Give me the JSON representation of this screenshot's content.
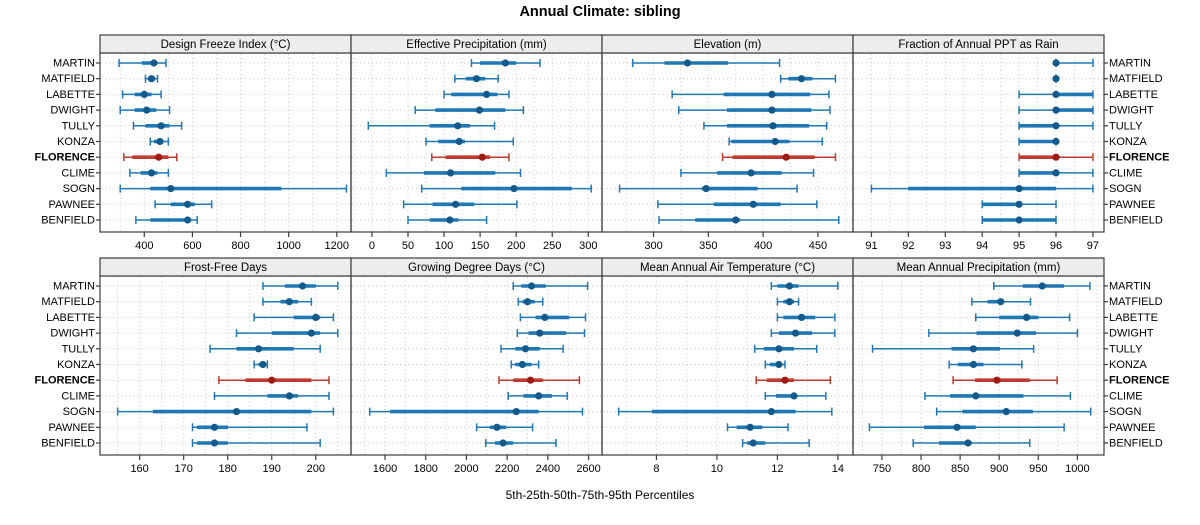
{
  "title": "Annual Climate: sibling",
  "caption": "5th-25th-50th-75th-95th Percentiles",
  "colors": {
    "series_line": "#1F77B4",
    "series_dot": "#125A8C",
    "highlight_line": "#BF3A2F",
    "highlight_dot": "#9E1A13",
    "panel_header_bg": "#EDEDED",
    "panel_border": "#3C3C3C",
    "grid": "#C8C8C8",
    "text": "#000000"
  },
  "chart_data": {
    "type": "dot-interval-trellis",
    "percentiles": [
      5,
      25,
      50,
      75,
      95
    ],
    "layout": {
      "rows": 2,
      "cols": 4,
      "grid": "dotted",
      "y_labels": "both-sides"
    },
    "sites": [
      "MARTIN",
      "MATFIELD",
      "LABETTE",
      "DWIGHT",
      "TULLY",
      "KONZA",
      "FLORENCE",
      "CLIME",
      "SOGN",
      "PAWNEE",
      "BENFIELD"
    ],
    "highlight_site": "FLORENCE",
    "panels": [
      {
        "title": "Design Freeze Index (°C)",
        "row": 0,
        "col": 0,
        "xlim": [
          216,
          1259
        ],
        "ticks": [
          400,
          600,
          800,
          1000,
          1200
        ],
        "grid_step": 100,
        "values": [
          [
            295,
            390,
            440,
            455,
            490
          ],
          [
            405,
            415,
            430,
            445,
            455
          ],
          [
            310,
            360,
            400,
            430,
            470
          ],
          [
            300,
            360,
            410,
            450,
            505
          ],
          [
            355,
            405,
            470,
            505,
            555
          ],
          [
            425,
            440,
            465,
            480,
            500
          ],
          [
            315,
            350,
            460,
            500,
            535
          ],
          [
            340,
            385,
            430,
            455,
            500
          ],
          [
            300,
            425,
            510,
            970,
            1240
          ],
          [
            445,
            510,
            580,
            610,
            680
          ],
          [
            365,
            425,
            580,
            595,
            620
          ]
        ]
      },
      {
        "title": "Effective Precipitation (mm)",
        "row": 0,
        "col": 1,
        "xlim": [
          -29,
          319
        ],
        "ticks": [
          0,
          50,
          100,
          150,
          200,
          250,
          300
        ],
        "grid_step": 25,
        "values": [
          [
            138,
            150,
            185,
            200,
            233
          ],
          [
            115,
            130,
            145,
            157,
            175
          ],
          [
            100,
            110,
            159,
            174,
            190
          ],
          [
            60,
            88,
            149,
            185,
            210
          ],
          [
            -5,
            80,
            119,
            136,
            170
          ],
          [
            75,
            92,
            121,
            129,
            196
          ],
          [
            83,
            102,
            153,
            164,
            190
          ],
          [
            20,
            72,
            109,
            171,
            206
          ],
          [
            69,
            124,
            197,
            277,
            304
          ],
          [
            44,
            84,
            116,
            142,
            201
          ],
          [
            50,
            80,
            108,
            120,
            159
          ]
        ]
      },
      {
        "title": "Elevation (m)",
        "row": 0,
        "col": 2,
        "xlim": [
          253,
          482
        ],
        "ticks": [
          300,
          350,
          400,
          450
        ],
        "grid_step": 25,
        "values": [
          [
            281,
            310,
            331,
            368,
            415
          ],
          [
            416,
            423,
            435,
            445,
            466
          ],
          [
            317,
            364,
            408,
            443,
            460
          ],
          [
            323,
            367,
            408,
            444,
            461
          ],
          [
            346,
            367,
            409,
            442,
            458
          ],
          [
            369,
            371,
            411,
            424,
            454
          ],
          [
            363,
            372,
            421,
            447,
            466
          ],
          [
            325,
            358,
            389,
            417,
            446
          ],
          [
            269,
            344,
            348,
            395,
            431
          ],
          [
            304,
            355,
            391,
            416,
            449
          ],
          [
            305,
            338,
            375,
            379,
            469
          ]
        ]
      },
      {
        "title": "Fraction of Annual PPT as Rain",
        "row": 0,
        "col": 3,
        "xlim": [
          90.5,
          97.3
        ],
        "ticks": [
          91,
          92,
          93,
          94,
          95,
          96,
          97
        ],
        "grid_step": 0.5,
        "values": [
          [
            96,
            96,
            96,
            96,
            97
          ],
          [
            96,
            96,
            96,
            96,
            96
          ],
          [
            95,
            96,
            96,
            97,
            97
          ],
          [
            95,
            96,
            96,
            97,
            97
          ],
          [
            95,
            95,
            96,
            96,
            97
          ],
          [
            95,
            95,
            96,
            96,
            96
          ],
          [
            95,
            95,
            96,
            96,
            97
          ],
          [
            95,
            95,
            96,
            96,
            97
          ],
          [
            91,
            92,
            95,
            96,
            97
          ],
          [
            94,
            94,
            95,
            95,
            96
          ],
          [
            94,
            94,
            95,
            96,
            96
          ]
        ]
      },
      {
        "title": "Frost-Free Days",
        "row": 1,
        "col": 0,
        "xlim": [
          151,
          208
        ],
        "ticks": [
          160,
          170,
          180,
          190,
          200
        ],
        "grid_step": 5,
        "values": [
          [
            188,
            193,
            197,
            200,
            205
          ],
          [
            188,
            192,
            194,
            196,
            199
          ],
          [
            186,
            195,
            200,
            201,
            204
          ],
          [
            182,
            190,
            199,
            201,
            205
          ],
          [
            176,
            182,
            187,
            195,
            201
          ],
          [
            186,
            187,
            188,
            188.5,
            189
          ],
          [
            178,
            184,
            190,
            199,
            203
          ],
          [
            177,
            189,
            194,
            196,
            203
          ],
          [
            155,
            163,
            182,
            199,
            204
          ],
          [
            172,
            173,
            177,
            180,
            198
          ],
          [
            172,
            173,
            177,
            180,
            201
          ]
        ]
      },
      {
        "title": "Growing Degree Days (°C)",
        "row": 1,
        "col": 1,
        "xlim": [
          1433,
          2666
        ],
        "ticks": [
          1600,
          1800,
          2000,
          2200,
          2400,
          2600
        ],
        "grid_step": 100,
        "values": [
          [
            2230,
            2270,
            2320,
            2390,
            2595
          ],
          [
            2255,
            2275,
            2300,
            2335,
            2375
          ],
          [
            2265,
            2340,
            2385,
            2505,
            2585
          ],
          [
            2250,
            2305,
            2360,
            2490,
            2580
          ],
          [
            2170,
            2240,
            2290,
            2360,
            2475
          ],
          [
            2220,
            2240,
            2275,
            2320,
            2355
          ],
          [
            2160,
            2230,
            2315,
            2375,
            2555
          ],
          [
            2205,
            2280,
            2355,
            2420,
            2495
          ],
          [
            1525,
            1625,
            2245,
            2355,
            2570
          ],
          [
            2050,
            2115,
            2150,
            2195,
            2325
          ],
          [
            2095,
            2140,
            2180,
            2230,
            2440
          ]
        ]
      },
      {
        "title": "Mean Annual Air Temperature (°C)",
        "row": 1,
        "col": 2,
        "xlim": [
          6.2,
          14.5
        ],
        "ticks": [
          8,
          10,
          12,
          14
        ],
        "grid_step": 1,
        "values": [
          [
            11.8,
            12.0,
            12.4,
            12.7,
            14.0
          ],
          [
            12.0,
            12.2,
            12.4,
            12.55,
            12.7
          ],
          [
            12.0,
            12.2,
            12.8,
            13.25,
            13.9
          ],
          [
            11.8,
            12.05,
            12.6,
            13.15,
            13.9
          ],
          [
            11.25,
            11.55,
            12.05,
            12.55,
            13.3
          ],
          [
            11.6,
            11.75,
            12.05,
            12.15,
            12.25
          ],
          [
            11.3,
            11.65,
            12.25,
            12.55,
            13.75
          ],
          [
            11.6,
            11.95,
            12.55,
            12.65,
            13.6
          ],
          [
            6.75,
            7.85,
            11.8,
            12.6,
            13.8
          ],
          [
            10.35,
            10.65,
            11.1,
            11.5,
            12.35
          ],
          [
            10.85,
            11.0,
            11.2,
            11.6,
            13.05
          ]
        ]
      },
      {
        "title": "Mean Annual Precipitation (mm)",
        "row": 1,
        "col": 3,
        "xlim": [
          713,
          1034
        ],
        "ticks": [
          750,
          800,
          850,
          900,
          950,
          1000
        ],
        "grid_step": 25,
        "values": [
          [
            893,
            930,
            955,
            983,
            1016
          ],
          [
            865,
            885,
            902,
            905,
            940
          ],
          [
            870,
            900,
            935,
            950,
            990
          ],
          [
            810,
            871,
            923,
            947,
            1000
          ],
          [
            738,
            839,
            867,
            901,
            944
          ],
          [
            836,
            847,
            867,
            880,
            929
          ],
          [
            841,
            869,
            897,
            939,
            974
          ],
          [
            805,
            837,
            870,
            931,
            991
          ],
          [
            820,
            853,
            909,
            943,
            1017
          ],
          [
            734,
            804,
            846,
            870,
            983
          ],
          [
            790,
            823,
            860,
            865,
            939
          ]
        ]
      }
    ]
  }
}
